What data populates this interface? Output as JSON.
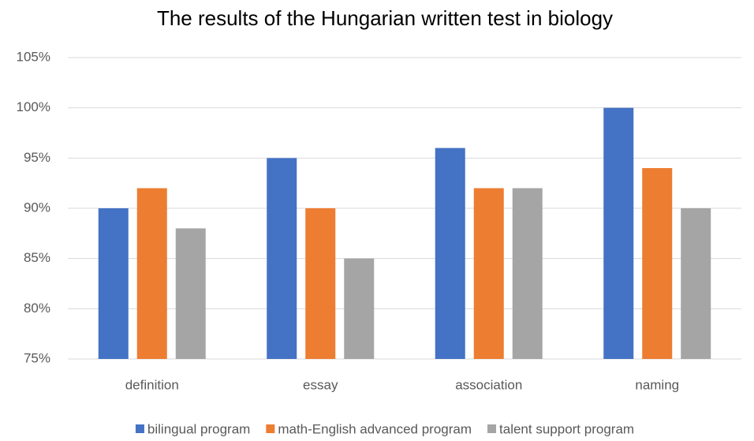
{
  "chart_data": {
    "type": "bar",
    "title": "The results of the Hungarian written test in biology",
    "categories": [
      "definition",
      "essay",
      "association",
      "naming"
    ],
    "series": [
      {
        "name": "bilingual program",
        "color": "#4472c4",
        "values": [
          90,
          95,
          96,
          100
        ]
      },
      {
        "name": "math-English advanced program",
        "color": "#ed7d31",
        "values": [
          92,
          90,
          92,
          94
        ]
      },
      {
        "name": "talent support program",
        "color": "#a5a5a5",
        "values": [
          88,
          85,
          92,
          90
        ]
      }
    ],
    "ylim": [
      75,
      105
    ],
    "yticks": [
      {
        "value": 75,
        "label": "75%"
      },
      {
        "value": 80,
        "label": "80%"
      },
      {
        "value": 85,
        "label": "85%"
      },
      {
        "value": 90,
        "label": "90%"
      },
      {
        "value": 95,
        "label": "95%"
      },
      {
        "value": 100,
        "label": "100%"
      },
      {
        "value": 105,
        "label": "105%"
      }
    ],
    "grid": true,
    "legend": "bottom"
  }
}
